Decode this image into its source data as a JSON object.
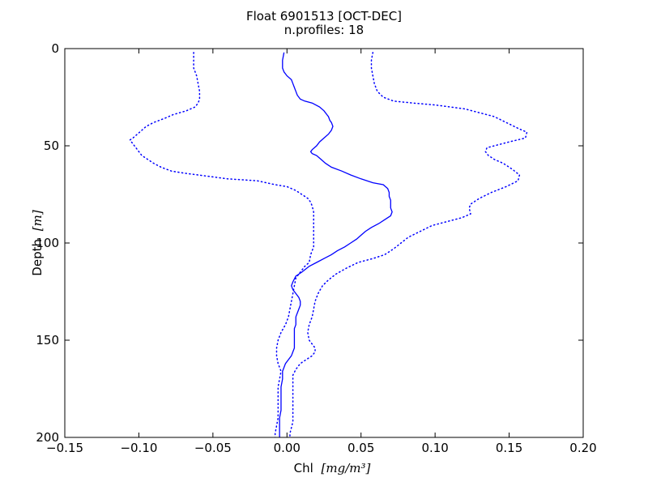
{
  "chart_data": {
    "type": "line",
    "title": "Float 6901513 [OCT-DEC]",
    "subtitle": "n.profiles: 18",
    "xlabel_main": "Chl",
    "xlabel_unit": "[mg/m³]",
    "ylabel_main": "Depth",
    "ylabel_unit": "[m]",
    "xlim": [
      -0.15,
      0.2
    ],
    "ylim": [
      200,
      0
    ],
    "y_inverted": true,
    "x_ticks": [
      -0.15,
      -0.1,
      -0.05,
      0.0,
      0.05,
      0.1,
      0.15,
      0.2
    ],
    "x_tick_labels": [
      "−0.15",
      "−0.10",
      "−0.05",
      "0.00",
      "0.05",
      "0.10",
      "0.15",
      "0.20"
    ],
    "y_ticks": [
      0,
      50,
      100,
      150,
      200
    ],
    "y_tick_labels": [
      "0",
      "50",
      "100",
      "150",
      "200"
    ],
    "grid": false,
    "line_color": "#0000ff",
    "series": [
      {
        "style": "solid",
        "points": [
          [
            -0.002,
            2
          ],
          [
            -0.003,
            6
          ],
          [
            -0.003,
            10
          ],
          [
            -0.002,
            12
          ],
          [
            0.0,
            14
          ],
          [
            0.003,
            16
          ],
          [
            0.004,
            18
          ],
          [
            0.005,
            20
          ],
          [
            0.006,
            22
          ],
          [
            0.007,
            24
          ],
          [
            0.009,
            26
          ],
          [
            0.012,
            27
          ],
          [
            0.017,
            28
          ],
          [
            0.022,
            30
          ],
          [
            0.025,
            32
          ],
          [
            0.027,
            34
          ],
          [
            0.028,
            35
          ],
          [
            0.029,
            37
          ],
          [
            0.03,
            38
          ],
          [
            0.031,
            40
          ],
          [
            0.03,
            42
          ],
          [
            0.028,
            44
          ],
          [
            0.025,
            46
          ],
          [
            0.022,
            48
          ],
          [
            0.02,
            50
          ],
          [
            0.017,
            52
          ],
          [
            0.016,
            53
          ],
          [
            0.017,
            54
          ],
          [
            0.02,
            55
          ],
          [
            0.023,
            57
          ],
          [
            0.026,
            59
          ],
          [
            0.03,
            61
          ],
          [
            0.037,
            63
          ],
          [
            0.043,
            65
          ],
          [
            0.05,
            67
          ],
          [
            0.058,
            69
          ],
          [
            0.065,
            70
          ],
          [
            0.068,
            72
          ],
          [
            0.069,
            74
          ],
          [
            0.069,
            76
          ],
          [
            0.07,
            78
          ],
          [
            0.07,
            80
          ],
          [
            0.07,
            82
          ],
          [
            0.071,
            84
          ],
          [
            0.07,
            86
          ],
          [
            0.066,
            88
          ],
          [
            0.062,
            90
          ],
          [
            0.057,
            92
          ],
          [
            0.053,
            94
          ],
          [
            0.05,
            96
          ],
          [
            0.047,
            98
          ],
          [
            0.043,
            100
          ],
          [
            0.039,
            102
          ],
          [
            0.034,
            104
          ],
          [
            0.03,
            106
          ],
          [
            0.025,
            108
          ],
          [
            0.02,
            110
          ],
          [
            0.015,
            112
          ],
          [
            0.01,
            115
          ],
          [
            0.006,
            117
          ],
          [
            0.004,
            120
          ],
          [
            0.003,
            122
          ],
          [
            0.004,
            124
          ],
          [
            0.006,
            126
          ],
          [
            0.008,
            128
          ],
          [
            0.009,
            130
          ],
          [
            0.009,
            132
          ],
          [
            0.008,
            134
          ],
          [
            0.007,
            136
          ],
          [
            0.006,
            138
          ],
          [
            0.006,
            140
          ],
          [
            0.006,
            142
          ],
          [
            0.005,
            144
          ],
          [
            0.005,
            146
          ],
          [
            0.005,
            148
          ],
          [
            0.005,
            150
          ],
          [
            0.005,
            152
          ],
          [
            0.005,
            154
          ],
          [
            0.004,
            156
          ],
          [
            0.003,
            158
          ],
          [
            0.001,
            160
          ],
          [
            -0.001,
            162
          ],
          [
            -0.002,
            164
          ],
          [
            -0.003,
            166
          ],
          [
            -0.003,
            170
          ],
          [
            -0.004,
            174
          ],
          [
            -0.004,
            178
          ],
          [
            -0.004,
            182
          ],
          [
            -0.004,
            186
          ],
          [
            -0.005,
            190
          ],
          [
            -0.005,
            194
          ],
          [
            -0.005,
            198
          ],
          [
            -0.005,
            200
          ]
        ]
      },
      {
        "style": "dotted",
        "points": [
          [
            -0.063,
            2
          ],
          [
            -0.063,
            6
          ],
          [
            -0.063,
            10
          ],
          [
            -0.061,
            14
          ],
          [
            -0.06,
            18
          ],
          [
            -0.059,
            22
          ],
          [
            -0.059,
            26
          ],
          [
            -0.06,
            28
          ],
          [
            -0.062,
            30
          ],
          [
            -0.068,
            32
          ],
          [
            -0.077,
            34
          ],
          [
            -0.083,
            36
          ],
          [
            -0.09,
            38
          ],
          [
            -0.095,
            40
          ],
          [
            -0.098,
            42
          ],
          [
            -0.101,
            44
          ],
          [
            -0.104,
            46
          ],
          [
            -0.106,
            47
          ],
          [
            -0.104,
            49
          ],
          [
            -0.102,
            51
          ],
          [
            -0.1,
            53
          ],
          [
            -0.098,
            55
          ],
          [
            -0.094,
            57
          ],
          [
            -0.09,
            59
          ],
          [
            -0.085,
            61
          ],
          [
            -0.078,
            63
          ],
          [
            -0.07,
            64
          ],
          [
            -0.06,
            65
          ],
          [
            -0.05,
            66
          ],
          [
            -0.04,
            67
          ],
          [
            -0.02,
            68
          ],
          [
            -0.008,
            70
          ],
          [
            0.0,
            71
          ],
          [
            0.006,
            73
          ],
          [
            0.01,
            75
          ],
          [
            0.014,
            77
          ],
          [
            0.016,
            79
          ],
          [
            0.017,
            81
          ],
          [
            0.018,
            84
          ],
          [
            0.018,
            90
          ],
          [
            0.018,
            94
          ],
          [
            0.018,
            98
          ],
          [
            0.018,
            102
          ],
          [
            0.016,
            106
          ],
          [
            0.015,
            110
          ],
          [
            0.012,
            112
          ],
          [
            0.009,
            115
          ],
          [
            0.006,
            118
          ],
          [
            0.005,
            122
          ],
          [
            0.004,
            126
          ],
          [
            0.003,
            130
          ],
          [
            0.002,
            134
          ],
          [
            0.001,
            138
          ],
          [
            -0.001,
            142
          ],
          [
            -0.004,
            146
          ],
          [
            -0.006,
            150
          ],
          [
            -0.007,
            154
          ],
          [
            -0.007,
            158
          ],
          [
            -0.006,
            162
          ],
          [
            -0.004,
            166
          ],
          [
            -0.005,
            170
          ],
          [
            -0.006,
            174
          ],
          [
            -0.006,
            178
          ],
          [
            -0.006,
            182
          ],
          [
            -0.006,
            186
          ],
          [
            -0.006,
            190
          ],
          [
            -0.007,
            194
          ],
          [
            -0.008,
            198
          ],
          [
            -0.008,
            200
          ]
        ]
      },
      {
        "style": "dotted",
        "points": [
          [
            0.058,
            2
          ],
          [
            0.057,
            6
          ],
          [
            0.057,
            10
          ],
          [
            0.058,
            14
          ],
          [
            0.059,
            18
          ],
          [
            0.061,
            22
          ],
          [
            0.065,
            25
          ],
          [
            0.072,
            27
          ],
          [
            0.085,
            28
          ],
          [
            0.1,
            29
          ],
          [
            0.11,
            30
          ],
          [
            0.12,
            31
          ],
          [
            0.13,
            33
          ],
          [
            0.14,
            35
          ],
          [
            0.148,
            38
          ],
          [
            0.156,
            41
          ],
          [
            0.162,
            43
          ],
          [
            0.161,
            46
          ],
          [
            0.15,
            48
          ],
          [
            0.14,
            50
          ],
          [
            0.135,
            51
          ],
          [
            0.134,
            53
          ],
          [
            0.136,
            55
          ],
          [
            0.14,
            57
          ],
          [
            0.146,
            59
          ],
          [
            0.152,
            62
          ],
          [
            0.157,
            65
          ],
          [
            0.156,
            68
          ],
          [
            0.148,
            71
          ],
          [
            0.138,
            74
          ],
          [
            0.13,
            77
          ],
          [
            0.124,
            80
          ],
          [
            0.123,
            82
          ],
          [
            0.124,
            85
          ],
          [
            0.118,
            87
          ],
          [
            0.108,
            89
          ],
          [
            0.098,
            91
          ],
          [
            0.09,
            94
          ],
          [
            0.082,
            97
          ],
          [
            0.077,
            100
          ],
          [
            0.072,
            103
          ],
          [
            0.066,
            106
          ],
          [
            0.058,
            108
          ],
          [
            0.048,
            110
          ],
          [
            0.04,
            113
          ],
          [
            0.033,
            116
          ],
          [
            0.028,
            119
          ],
          [
            0.024,
            122
          ],
          [
            0.021,
            126
          ],
          [
            0.019,
            130
          ],
          [
            0.018,
            134
          ],
          [
            0.017,
            138
          ],
          [
            0.015,
            142
          ],
          [
            0.014,
            146
          ],
          [
            0.015,
            150
          ],
          [
            0.017,
            152
          ],
          [
            0.019,
            154
          ],
          [
            0.019,
            156
          ],
          [
            0.017,
            158
          ],
          [
            0.013,
            160
          ],
          [
            0.009,
            162
          ],
          [
            0.006,
            165
          ],
          [
            0.004,
            168
          ],
          [
            0.004,
            172
          ],
          [
            0.004,
            176
          ],
          [
            0.004,
            180
          ],
          [
            0.004,
            184
          ],
          [
            0.004,
            188
          ],
          [
            0.004,
            192
          ],
          [
            0.003,
            195
          ],
          [
            0.002,
            198
          ],
          [
            0.002,
            200
          ]
        ]
      }
    ]
  }
}
